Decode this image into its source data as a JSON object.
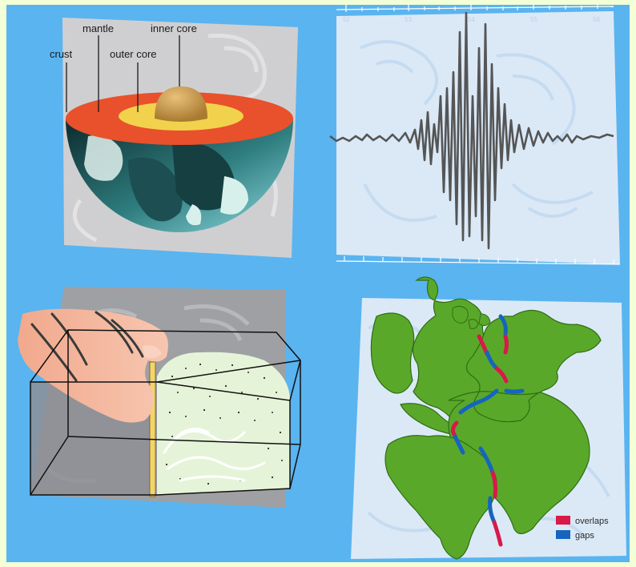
{
  "earth_layers": {
    "crust": "crust",
    "mantle": "mantle",
    "outer_core": "outer core",
    "inner_core": "inner core"
  },
  "seismogram": {
    "ticks": [
      "52",
      "53",
      "54",
      "55",
      "56"
    ]
  },
  "continental_fit": {
    "legend": [
      {
        "label": "overlaps",
        "color": "#d8194a"
      },
      {
        "label": "gaps",
        "color": "#1565c0"
      }
    ]
  },
  "colors": {
    "background": "#5ab4f0",
    "frame": "#f3ffd6",
    "panel_grey": "#cfcfd2",
    "panel_light": "#dbe9f7",
    "crust_red": "#e8512b",
    "outer_core_yellow": "#f2d24c",
    "inner_core_tan": "#c99845",
    "land_green": "#5aa82a"
  }
}
